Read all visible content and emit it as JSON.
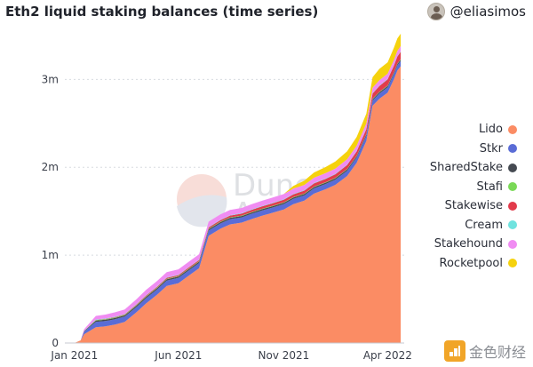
{
  "header": {
    "title": "Eth2 liquid staking balances (time series)",
    "author": "@eliasimos"
  },
  "watermark": {
    "line1": "Dune",
    "line2": "Analytics"
  },
  "brand": {
    "text": "金色财经",
    "icon": "coin-stack-icon",
    "color": "#f1a528"
  },
  "chart_data": {
    "type": "area",
    "stacked": true,
    "title": "Eth2 liquid staking balances (time series)",
    "xlabel": "",
    "ylabel": "",
    "ylim": [
      0,
      3.6
    ],
    "y_unit": "m",
    "yticks": [
      {
        "value": 0,
        "label": "0"
      },
      {
        "value": 1,
        "label": "1m"
      },
      {
        "value": 2,
        "label": "2m"
      },
      {
        "value": 3,
        "label": "3m"
      }
    ],
    "xlim": [
      "2020-12-18",
      "2022-04-25"
    ],
    "xticks": [
      {
        "date": "2021-01-01",
        "label": "Jan 2021"
      },
      {
        "date": "2021-06-01",
        "label": "Jun 2021"
      },
      {
        "date": "2021-11-01",
        "label": "Nov 2021"
      },
      {
        "date": "2022-04-01",
        "label": "Apr 2022"
      }
    ],
    "grid": {
      "horizontal": true,
      "vertical": false
    },
    "legend": {
      "position": "right"
    },
    "x": [
      "2020-12-18",
      "2021-01-01",
      "2021-01-10",
      "2021-01-15",
      "2021-02-01",
      "2021-02-15",
      "2021-03-01",
      "2021-03-15",
      "2021-04-01",
      "2021-04-15",
      "2021-05-01",
      "2021-05-15",
      "2021-06-01",
      "2021-06-15",
      "2021-07-01",
      "2021-07-15",
      "2021-08-01",
      "2021-08-15",
      "2021-09-01",
      "2021-09-15",
      "2021-10-01",
      "2021-10-15",
      "2021-11-01",
      "2021-11-15",
      "2021-12-01",
      "2021-12-15",
      "2022-01-01",
      "2022-01-15",
      "2022-02-01",
      "2022-02-15",
      "2022-03-01",
      "2022-03-10",
      "2022-03-20",
      "2022-04-01",
      "2022-04-10",
      "2022-04-15",
      "2022-04-20"
    ],
    "series": [
      {
        "name": "Lido",
        "color": "#fb8c64",
        "values": [
          0,
          0,
          0.03,
          0.1,
          0.18,
          0.19,
          0.21,
          0.24,
          0.35,
          0.45,
          0.55,
          0.65,
          0.68,
          0.76,
          0.85,
          1.22,
          1.3,
          1.35,
          1.37,
          1.41,
          1.45,
          1.48,
          1.52,
          1.58,
          1.62,
          1.7,
          1.75,
          1.8,
          1.9,
          2.05,
          2.3,
          2.7,
          2.78,
          2.85,
          3.0,
          3.1,
          3.15
        ]
      },
      {
        "name": "Stkr",
        "color": "#5a6cd6",
        "values": [
          0,
          0,
          0,
          0.03,
          0.06,
          0.06,
          0.06,
          0.06,
          0.06,
          0.06,
          0.06,
          0.06,
          0.06,
          0.06,
          0.06,
          0.06,
          0.06,
          0.06,
          0.06,
          0.06,
          0.06,
          0.06,
          0.06,
          0.06,
          0.06,
          0.06,
          0.06,
          0.06,
          0.06,
          0.06,
          0.06,
          0.06,
          0.06,
          0.06,
          0.06,
          0.06,
          0.06
        ]
      },
      {
        "name": "SharedStake",
        "color": "#454a52",
        "values": [
          0,
          0,
          0,
          0.005,
          0.015,
          0.015,
          0.015,
          0.015,
          0.015,
          0.015,
          0.015,
          0.015,
          0.015,
          0.015,
          0.015,
          0.015,
          0.015,
          0.015,
          0.015,
          0.015,
          0.015,
          0.015,
          0.015,
          0.015,
          0.015,
          0.015,
          0.015,
          0.015,
          0.015,
          0.015,
          0.015,
          0.015,
          0.015,
          0.015,
          0.015,
          0.015,
          0.015
        ]
      },
      {
        "name": "Stafi",
        "color": "#7ad957",
        "values": [
          0,
          0,
          0,
          0.002,
          0.005,
          0.005,
          0.005,
          0.005,
          0.005,
          0.005,
          0.005,
          0.005,
          0.005,
          0.005,
          0.005,
          0.005,
          0.005,
          0.005,
          0.005,
          0.005,
          0.005,
          0.005,
          0.005,
          0.005,
          0.005,
          0.005,
          0.005,
          0.005,
          0.005,
          0.005,
          0.005,
          0.005,
          0.005,
          0.005,
          0.005,
          0.005,
          0.005
        ]
      },
      {
        "name": "Stakewise",
        "color": "#e23b4b",
        "values": [
          0,
          0,
          0,
          0,
          0.003,
          0.004,
          0.005,
          0.006,
          0.008,
          0.01,
          0.01,
          0.012,
          0.013,
          0.014,
          0.015,
          0.016,
          0.018,
          0.02,
          0.022,
          0.024,
          0.026,
          0.028,
          0.03,
          0.032,
          0.034,
          0.036,
          0.038,
          0.04,
          0.045,
          0.05,
          0.055,
          0.06,
          0.065,
          0.07,
          0.075,
          0.08,
          0.085
        ]
      },
      {
        "name": "Cream",
        "color": "#6fe3df",
        "values": [
          0,
          0,
          0,
          0,
          0.005,
          0.005,
          0.005,
          0.005,
          0.005,
          0.005,
          0.005,
          0.005,
          0.005,
          0.005,
          0.005,
          0.005,
          0.005,
          0.005,
          0.005,
          0.005,
          0.005,
          0.005,
          0.005,
          0.005,
          0.005,
          0.005,
          0.005,
          0.005,
          0.005,
          0.005,
          0.005,
          0.005,
          0.005,
          0.005,
          0.005,
          0.005,
          0.005
        ]
      },
      {
        "name": "Stakehound",
        "color": "#f08cf2",
        "values": [
          0,
          0,
          0,
          0.02,
          0.04,
          0.045,
          0.05,
          0.05,
          0.055,
          0.06,
          0.06,
          0.06,
          0.06,
          0.06,
          0.06,
          0.06,
          0.06,
          0.06,
          0.06,
          0.06,
          0.06,
          0.06,
          0.06,
          0.06,
          0.06,
          0.06,
          0.06,
          0.06,
          0.06,
          0.06,
          0.06,
          0.06,
          0.06,
          0.06,
          0.06,
          0.06,
          0.06
        ]
      },
      {
        "name": "Rocketpool",
        "color": "#f5d20e",
        "values": [
          0,
          0,
          0,
          0,
          0,
          0,
          0,
          0,
          0,
          0,
          0,
          0,
          0,
          0,
          0,
          0,
          0,
          0,
          0,
          0,
          0,
          0,
          0,
          0.03,
          0.05,
          0.06,
          0.07,
          0.08,
          0.09,
          0.1,
          0.11,
          0.12,
          0.13,
          0.13,
          0.14,
          0.14,
          0.14
        ]
      }
    ]
  }
}
